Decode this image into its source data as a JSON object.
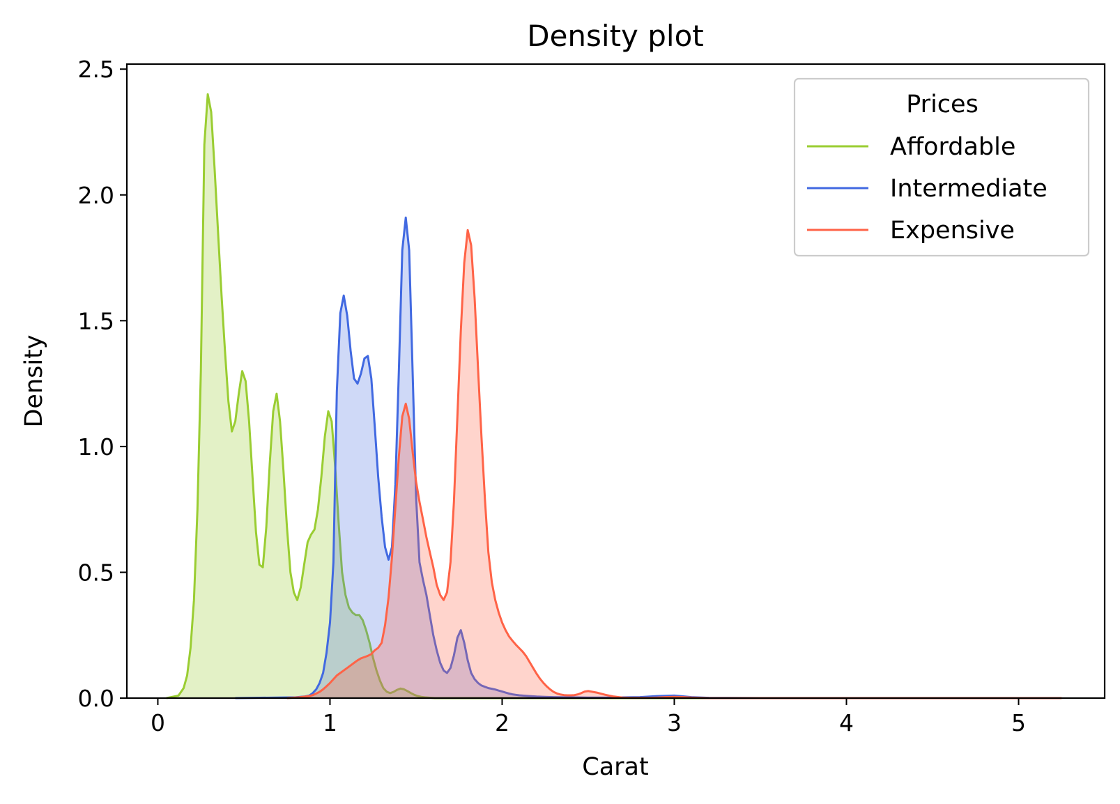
{
  "chart_data": {
    "type": "area",
    "title": "Density plot",
    "xlabel": "Carat",
    "ylabel": "Density",
    "xlim": [
      -0.18,
      5.5
    ],
    "ylim": [
      0,
      2.52
    ],
    "xticks": [
      0,
      1,
      2,
      3,
      4,
      5
    ],
    "xtick_labels": [
      "0",
      "1",
      "2",
      "3",
      "4",
      "5"
    ],
    "yticks": [
      0.0,
      0.5,
      1.0,
      1.5,
      2.0,
      2.5
    ],
    "ytick_labels": [
      "0.0",
      "0.5",
      "1.0",
      "1.5",
      "2.0",
      "2.5"
    ],
    "grid": false,
    "legend": {
      "title": "Prices",
      "placement": "top-right"
    },
    "series": [
      {
        "name": "Affordable",
        "color": "#9acd32",
        "fill_opacity": 0.28,
        "x": [
          0.05,
          0.12,
          0.15,
          0.17,
          0.19,
          0.21,
          0.23,
          0.25,
          0.27,
          0.29,
          0.31,
          0.33,
          0.35,
          0.37,
          0.39,
          0.41,
          0.43,
          0.45,
          0.47,
          0.49,
          0.51,
          0.53,
          0.55,
          0.57,
          0.59,
          0.61,
          0.63,
          0.65,
          0.67,
          0.69,
          0.71,
          0.73,
          0.75,
          0.77,
          0.79,
          0.81,
          0.83,
          0.85,
          0.87,
          0.89,
          0.91,
          0.93,
          0.95,
          0.97,
          0.99,
          1.01,
          1.03,
          1.05,
          1.07,
          1.09,
          1.11,
          1.13,
          1.15,
          1.17,
          1.19,
          1.21,
          1.23,
          1.25,
          1.27,
          1.29,
          1.31,
          1.33,
          1.35,
          1.37,
          1.39,
          1.41,
          1.43,
          1.45,
          1.47,
          1.49,
          1.51,
          1.53,
          1.55,
          1.57,
          1.59,
          1.61,
          1.65,
          1.8,
          2.0,
          2.5,
          3.0,
          3.5
        ],
        "y": [
          0.0,
          0.01,
          0.04,
          0.09,
          0.2,
          0.39,
          0.75,
          1.3,
          2.2,
          2.4,
          2.33,
          2.1,
          1.85,
          1.6,
          1.38,
          1.18,
          1.06,
          1.1,
          1.21,
          1.3,
          1.26,
          1.1,
          0.88,
          0.66,
          0.53,
          0.52,
          0.68,
          0.93,
          1.14,
          1.21,
          1.1,
          0.9,
          0.68,
          0.5,
          0.42,
          0.39,
          0.44,
          0.53,
          0.62,
          0.65,
          0.67,
          0.75,
          0.88,
          1.04,
          1.14,
          1.1,
          0.92,
          0.7,
          0.5,
          0.41,
          0.36,
          0.34,
          0.33,
          0.33,
          0.31,
          0.27,
          0.22,
          0.16,
          0.11,
          0.07,
          0.04,
          0.025,
          0.02,
          0.025,
          0.033,
          0.038,
          0.035,
          0.028,
          0.02,
          0.013,
          0.008,
          0.005,
          0.003,
          0.002,
          0.001,
          0.0,
          0.0,
          0.0,
          0.0,
          0.0,
          0.0,
          0.0
        ]
      },
      {
        "name": "Intermediate",
        "color": "#4169e1",
        "fill_opacity": 0.25,
        "x": [
          0.45,
          0.8,
          0.85,
          0.88,
          0.9,
          0.92,
          0.94,
          0.96,
          0.98,
          1.0,
          1.02,
          1.04,
          1.06,
          1.08,
          1.1,
          1.12,
          1.14,
          1.16,
          1.18,
          1.2,
          1.22,
          1.24,
          1.26,
          1.28,
          1.3,
          1.32,
          1.34,
          1.36,
          1.38,
          1.4,
          1.42,
          1.44,
          1.46,
          1.48,
          1.5,
          1.52,
          1.54,
          1.56,
          1.58,
          1.6,
          1.62,
          1.64,
          1.66,
          1.68,
          1.7,
          1.72,
          1.74,
          1.76,
          1.78,
          1.8,
          1.82,
          1.84,
          1.86,
          1.88,
          1.9,
          1.92,
          1.94,
          1.96,
          1.98,
          2.0,
          2.02,
          2.04,
          2.06,
          2.08,
          2.1,
          2.12,
          2.14,
          2.16,
          2.2,
          2.25,
          2.3,
          2.4,
          2.5,
          2.6,
          2.8,
          2.9,
          3.0,
          3.1,
          3.2,
          3.5
        ],
        "y": [
          0.0,
          0.003,
          0.006,
          0.01,
          0.02,
          0.035,
          0.06,
          0.1,
          0.18,
          0.3,
          0.54,
          1.22,
          1.53,
          1.6,
          1.52,
          1.38,
          1.27,
          1.25,
          1.29,
          1.35,
          1.36,
          1.27,
          1.08,
          0.88,
          0.72,
          0.6,
          0.55,
          0.6,
          0.85,
          1.3,
          1.78,
          1.91,
          1.78,
          1.3,
          0.8,
          0.54,
          0.47,
          0.41,
          0.33,
          0.25,
          0.19,
          0.14,
          0.11,
          0.1,
          0.12,
          0.17,
          0.24,
          0.27,
          0.22,
          0.15,
          0.1,
          0.075,
          0.06,
          0.05,
          0.045,
          0.04,
          0.037,
          0.034,
          0.03,
          0.026,
          0.022,
          0.018,
          0.015,
          0.013,
          0.011,
          0.01,
          0.009,
          0.008,
          0.006,
          0.005,
          0.004,
          0.003,
          0.002,
          0.002,
          0.004,
          0.008,
          0.01,
          0.004,
          0.001,
          0.0
        ]
      },
      {
        "name": "Expensive",
        "color": "#ff6347",
        "fill_opacity": 0.28,
        "x": [
          0.75,
          0.82,
          0.88,
          0.9,
          0.92,
          0.94,
          0.96,
          0.98,
          1.0,
          1.02,
          1.04,
          1.06,
          1.08,
          1.1,
          1.12,
          1.14,
          1.16,
          1.18,
          1.2,
          1.22,
          1.24,
          1.26,
          1.28,
          1.3,
          1.32,
          1.34,
          1.36,
          1.38,
          1.4,
          1.42,
          1.44,
          1.46,
          1.48,
          1.5,
          1.52,
          1.54,
          1.56,
          1.58,
          1.6,
          1.62,
          1.64,
          1.66,
          1.68,
          1.7,
          1.72,
          1.74,
          1.76,
          1.78,
          1.8,
          1.82,
          1.84,
          1.86,
          1.88,
          1.9,
          1.92,
          1.94,
          1.96,
          1.98,
          2.0,
          2.02,
          2.04,
          2.06,
          2.08,
          2.1,
          2.12,
          2.14,
          2.16,
          2.18,
          2.2,
          2.22,
          2.24,
          2.26,
          2.28,
          2.3,
          2.32,
          2.34,
          2.36,
          2.38,
          2.4,
          2.42,
          2.44,
          2.46,
          2.48,
          2.5,
          2.55,
          2.6,
          2.65,
          2.7,
          2.75,
          2.8,
          2.85,
          2.9,
          2.95,
          3.0,
          3.05,
          3.1,
          3.15,
          3.2,
          3.3,
          3.5,
          4.0,
          4.5,
          5.0,
          5.25
        ],
        "y": [
          0.0,
          0.003,
          0.008,
          0.012,
          0.018,
          0.025,
          0.035,
          0.047,
          0.06,
          0.075,
          0.09,
          0.1,
          0.11,
          0.12,
          0.13,
          0.14,
          0.15,
          0.158,
          0.163,
          0.168,
          0.175,
          0.19,
          0.2,
          0.22,
          0.29,
          0.4,
          0.56,
          0.76,
          0.96,
          1.12,
          1.17,
          1.11,
          0.98,
          0.86,
          0.78,
          0.71,
          0.64,
          0.58,
          0.52,
          0.45,
          0.41,
          0.39,
          0.42,
          0.54,
          0.78,
          1.12,
          1.46,
          1.73,
          1.86,
          1.8,
          1.59,
          1.31,
          1.04,
          0.79,
          0.58,
          0.46,
          0.39,
          0.34,
          0.3,
          0.27,
          0.245,
          0.228,
          0.212,
          0.198,
          0.184,
          0.166,
          0.143,
          0.12,
          0.097,
          0.077,
          0.06,
          0.046,
          0.034,
          0.024,
          0.018,
          0.014,
          0.012,
          0.011,
          0.011,
          0.012,
          0.015,
          0.02,
          0.026,
          0.028,
          0.022,
          0.013,
          0.006,
          0.002,
          0.001,
          0.001,
          0.001,
          0.002,
          0.004,
          0.005,
          0.004,
          0.002,
          0.001,
          0.0,
          0.0,
          0.0,
          0.0,
          0.0,
          0.0,
          0.0
        ]
      }
    ]
  }
}
